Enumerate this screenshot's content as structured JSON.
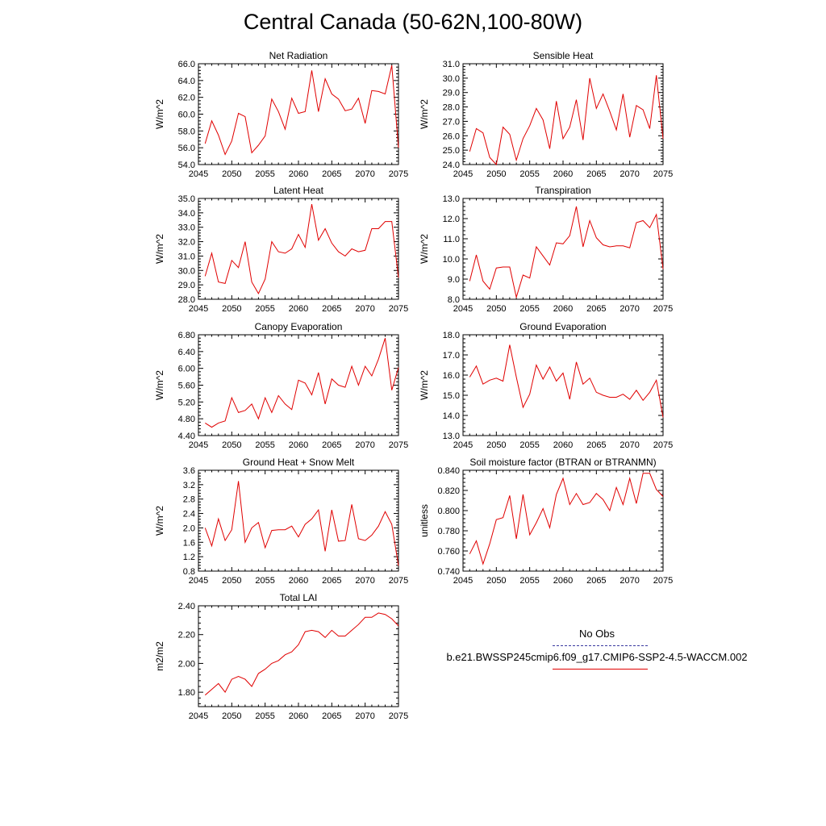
{
  "title": "Central Canada (50-62N,100-80W)",
  "legend": {
    "obs_label": "No Obs",
    "model_label": "b.e21.BWSSP245cmip6.f09_g17.CMIP6-SSP2-4.5-WACCM.002",
    "obs_color": "#3a3aa0",
    "model_color": "#e00000"
  },
  "chart_data": [
    {
      "type": "line",
      "title": "Net Radiation",
      "ylabel": "W/m^2",
      "xlim": [
        2045,
        2075
      ],
      "ylim": [
        54.0,
        66.0
      ],
      "xticks": [
        2045,
        2050,
        2055,
        2060,
        2065,
        2070,
        2075
      ],
      "yticks": [
        "54.0",
        "56.0",
        "58.0",
        "60.0",
        "62.0",
        "64.0",
        "66.0"
      ],
      "x": [
        2046,
        2047,
        2048,
        2049,
        2050,
        2051,
        2052,
        2053,
        2054,
        2055,
        2056,
        2057,
        2058,
        2059,
        2060,
        2061,
        2062,
        2063,
        2064,
        2065,
        2066,
        2067,
        2068,
        2069,
        2070,
        2071,
        2072,
        2073,
        2074,
        2075
      ],
      "values": [
        56.5,
        59.2,
        57.5,
        55.2,
        56.8,
        60.1,
        59.7,
        55.4,
        56.3,
        57.4,
        61.8,
        60.3,
        58.2,
        61.9,
        60.1,
        60.3,
        65.2,
        60.3,
        64.2,
        62.4,
        61.8,
        60.4,
        60.6,
        61.9,
        58.9,
        62.8,
        62.7,
        62.4,
        65.8,
        56.0
      ]
    },
    {
      "type": "line",
      "title": "Sensible Heat",
      "ylabel": "W/m^2",
      "xlim": [
        2045,
        2075
      ],
      "ylim": [
        24.0,
        31.0
      ],
      "xticks": [
        2045,
        2050,
        2055,
        2060,
        2065,
        2070,
        2075
      ],
      "yticks": [
        "24.0",
        "25.0",
        "26.0",
        "27.0",
        "28.0",
        "29.0",
        "30.0",
        "31.0"
      ],
      "x": [
        2046,
        2047,
        2048,
        2049,
        2050,
        2051,
        2052,
        2053,
        2054,
        2055,
        2056,
        2057,
        2058,
        2059,
        2060,
        2061,
        2062,
        2063,
        2064,
        2065,
        2066,
        2067,
        2068,
        2069,
        2070,
        2071,
        2072,
        2073,
        2074,
        2075
      ],
      "values": [
        24.9,
        26.5,
        26.2,
        24.5,
        24.0,
        26.6,
        26.1,
        24.3,
        25.8,
        26.7,
        27.9,
        27.1,
        25.1,
        28.4,
        25.8,
        26.6,
        28.5,
        25.7,
        30.0,
        27.9,
        28.9,
        27.7,
        26.4,
        28.9,
        25.9,
        28.1,
        27.8,
        26.5,
        30.2,
        25.8
      ]
    },
    {
      "type": "line",
      "title": "Latent Heat",
      "ylabel": "W/m^2",
      "xlim": [
        2045,
        2075
      ],
      "ylim": [
        28.0,
        35.0
      ],
      "xticks": [
        2045,
        2050,
        2055,
        2060,
        2065,
        2070,
        2075
      ],
      "yticks": [
        "28.0",
        "29.0",
        "30.0",
        "31.0",
        "32.0",
        "33.0",
        "34.0",
        "35.0"
      ],
      "x": [
        2046,
        2047,
        2048,
        2049,
        2050,
        2051,
        2052,
        2053,
        2054,
        2055,
        2056,
        2057,
        2058,
        2059,
        2060,
        2061,
        2062,
        2063,
        2064,
        2065,
        2066,
        2067,
        2068,
        2069,
        2070,
        2071,
        2072,
        2073,
        2074,
        2075
      ],
      "values": [
        29.6,
        31.2,
        29.2,
        29.1,
        30.7,
        30.2,
        32.0,
        29.2,
        28.4,
        29.4,
        32.0,
        31.3,
        31.2,
        31.5,
        32.5,
        31.6,
        34.6,
        32.1,
        32.9,
        31.9,
        31.3,
        31.0,
        31.5,
        31.3,
        31.4,
        32.9,
        32.9,
        33.4,
        33.4,
        29.5
      ]
    },
    {
      "type": "line",
      "title": "Transpiration",
      "ylabel": "W/m^2",
      "xlim": [
        2045,
        2075
      ],
      "ylim": [
        8.0,
        13.0
      ],
      "xticks": [
        2045,
        2050,
        2055,
        2060,
        2065,
        2070,
        2075
      ],
      "yticks": [
        "8.0",
        "9.0",
        "10.0",
        "11.0",
        "12.0",
        "13.0"
      ],
      "x": [
        2046,
        2047,
        2048,
        2049,
        2050,
        2051,
        2052,
        2053,
        2054,
        2055,
        2056,
        2057,
        2058,
        2059,
        2060,
        2061,
        2062,
        2063,
        2064,
        2065,
        2066,
        2067,
        2068,
        2069,
        2070,
        2071,
        2072,
        2073,
        2074,
        2075
      ],
      "values": [
        8.9,
        10.2,
        8.9,
        8.5,
        9.55,
        9.6,
        9.6,
        8.1,
        9.2,
        9.05,
        10.6,
        10.15,
        9.7,
        10.8,
        10.75,
        11.15,
        12.6,
        10.6,
        11.9,
        11.05,
        10.7,
        10.6,
        10.65,
        10.65,
        10.55,
        11.8,
        11.9,
        11.55,
        12.2,
        9.5
      ]
    },
    {
      "type": "line",
      "title": "Canopy Evaporation",
      "ylabel": "W/m^2",
      "xlim": [
        2045,
        2075
      ],
      "ylim": [
        4.4,
        6.8
      ],
      "xticks": [
        2045,
        2050,
        2055,
        2060,
        2065,
        2070,
        2075
      ],
      "yticks": [
        "4.40",
        "4.80",
        "5.20",
        "5.60",
        "6.00",
        "6.40",
        "6.80"
      ],
      "x": [
        2046,
        2047,
        2048,
        2049,
        2050,
        2051,
        2052,
        2053,
        2054,
        2055,
        2056,
        2057,
        2058,
        2059,
        2060,
        2061,
        2062,
        2063,
        2064,
        2065,
        2066,
        2067,
        2068,
        2069,
        2070,
        2071,
        2072,
        2073,
        2074,
        2075
      ],
      "values": [
        4.7,
        4.6,
        4.7,
        4.75,
        5.3,
        4.95,
        5.0,
        5.15,
        4.8,
        5.3,
        4.95,
        5.35,
        5.15,
        5.02,
        5.72,
        5.65,
        5.37,
        5.9,
        5.15,
        5.75,
        5.6,
        5.55,
        6.05,
        5.6,
        6.05,
        5.82,
        6.22,
        6.72,
        5.48,
        6.02
      ]
    },
    {
      "type": "line",
      "title": "Ground Evaporation",
      "ylabel": "W/m^2",
      "xlim": [
        2045,
        2075
      ],
      "ylim": [
        13.0,
        18.0
      ],
      "xticks": [
        2045,
        2050,
        2055,
        2060,
        2065,
        2070,
        2075
      ],
      "yticks": [
        "13.0",
        "14.0",
        "15.0",
        "16.0",
        "17.0",
        "18.0"
      ],
      "x": [
        2046,
        2047,
        2048,
        2049,
        2050,
        2051,
        2052,
        2053,
        2054,
        2055,
        2056,
        2057,
        2058,
        2059,
        2060,
        2061,
        2062,
        2063,
        2064,
        2065,
        2066,
        2067,
        2068,
        2069,
        2070,
        2071,
        2072,
        2073,
        2074,
        2075
      ],
      "values": [
        15.9,
        16.45,
        15.55,
        15.75,
        15.85,
        15.7,
        17.5,
        15.9,
        14.4,
        15.05,
        16.5,
        15.8,
        16.4,
        15.7,
        16.1,
        14.8,
        16.65,
        15.55,
        15.85,
        15.15,
        15.0,
        14.9,
        14.9,
        15.05,
        14.8,
        15.25,
        14.75,
        15.15,
        15.75,
        13.9
      ]
    },
    {
      "type": "line",
      "title": "Ground Heat + Snow Melt",
      "ylabel": "W/m^2",
      "xlim": [
        2045,
        2075
      ],
      "ylim": [
        0.8,
        3.6
      ],
      "xticks": [
        2045,
        2050,
        2055,
        2060,
        2065,
        2070,
        2075
      ],
      "yticks": [
        "0.8",
        "1.2",
        "1.6",
        "2.0",
        "2.4",
        "2.8",
        "3.2",
        "3.6"
      ],
      "x": [
        2046,
        2047,
        2048,
        2049,
        2050,
        2051,
        2052,
        2053,
        2054,
        2055,
        2056,
        2057,
        2058,
        2059,
        2060,
        2061,
        2062,
        2063,
        2064,
        2065,
        2066,
        2067,
        2068,
        2069,
        2070,
        2071,
        2072,
        2073,
        2074,
        2075
      ],
      "values": [
        2.0,
        1.5,
        2.25,
        1.65,
        1.95,
        3.3,
        1.6,
        2.0,
        2.15,
        1.45,
        1.93,
        1.95,
        1.95,
        2.05,
        1.75,
        2.1,
        2.25,
        2.5,
        1.35,
        2.5,
        1.63,
        1.65,
        2.65,
        1.7,
        1.65,
        1.8,
        2.05,
        2.45,
        2.1,
        0.95
      ]
    },
    {
      "type": "line",
      "title": "Soil moisture factor (BTRAN or BTRANMN)",
      "ylabel": "unitless",
      "xlim": [
        2045,
        2075
      ],
      "ylim": [
        0.74,
        0.84
      ],
      "xticks": [
        2045,
        2050,
        2055,
        2060,
        2065,
        2070,
        2075
      ],
      "yticks": [
        "0.740",
        "0.760",
        "0.780",
        "0.800",
        "0.820",
        "0.840"
      ],
      "x": [
        2046,
        2047,
        2048,
        2049,
        2050,
        2051,
        2052,
        2053,
        2054,
        2055,
        2056,
        2057,
        2058,
        2059,
        2060,
        2061,
        2062,
        2063,
        2064,
        2065,
        2066,
        2067,
        2068,
        2069,
        2070,
        2071,
        2072,
        2073,
        2074,
        2075
      ],
      "values": [
        0.757,
        0.77,
        0.747,
        0.767,
        0.791,
        0.793,
        0.815,
        0.772,
        0.816,
        0.776,
        0.788,
        0.802,
        0.783,
        0.816,
        0.832,
        0.806,
        0.817,
        0.806,
        0.808,
        0.817,
        0.811,
        0.8,
        0.823,
        0.806,
        0.832,
        0.807,
        0.837,
        0.837,
        0.821,
        0.814
      ]
    },
    {
      "type": "line",
      "title": "Total LAI",
      "ylabel": "m2/m2",
      "xlim": [
        2045,
        2075
      ],
      "ylim": [
        1.7,
        2.4
      ],
      "xticks": [
        2045,
        2050,
        2055,
        2060,
        2065,
        2070,
        2075
      ],
      "yticks": [
        "1.80",
        "2.00",
        "2.20",
        "2.40"
      ],
      "x": [
        2046,
        2047,
        2048,
        2049,
        2050,
        2051,
        2052,
        2053,
        2054,
        2055,
        2056,
        2057,
        2058,
        2059,
        2060,
        2061,
        2062,
        2063,
        2064,
        2065,
        2066,
        2067,
        2068,
        2069,
        2070,
        2071,
        2072,
        2073,
        2074,
        2075
      ],
      "values": [
        1.78,
        1.82,
        1.86,
        1.8,
        1.89,
        1.91,
        1.89,
        1.84,
        1.93,
        1.96,
        2.0,
        2.02,
        2.06,
        2.08,
        2.13,
        2.22,
        2.23,
        2.22,
        2.18,
        2.23,
        2.19,
        2.19,
        2.23,
        2.27,
        2.32,
        2.32,
        2.35,
        2.34,
        2.31,
        2.26
      ]
    }
  ]
}
